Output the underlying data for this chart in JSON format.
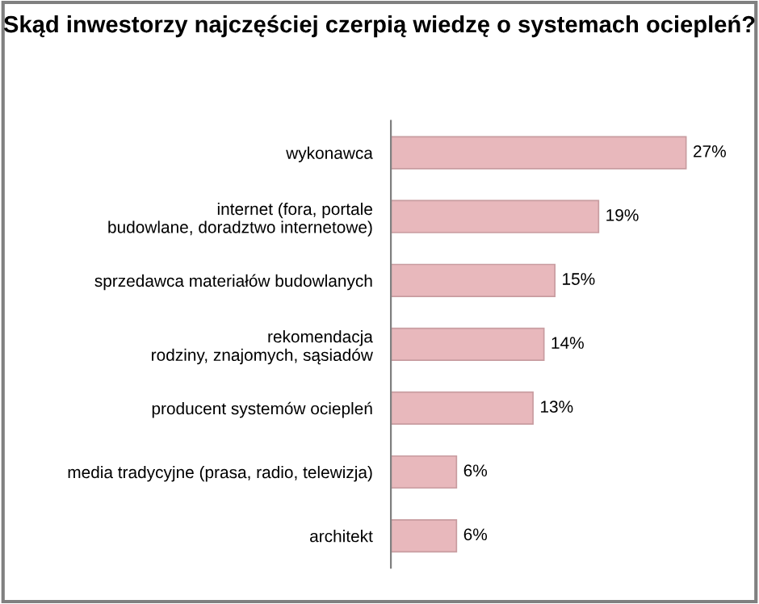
{
  "chart_data": {
    "type": "bar",
    "orientation": "horizontal",
    "title": "Skąd inwestorzy najczęściej czerpią wiedzę o systemach ociepleń?",
    "categories": [
      "wykonawca",
      "internet (fora, portale\nbudowlane, doradztwo internetowe)",
      "sprzedawca materiałów budowlanych",
      "rekomendacja\nrodziny, znajomych, sąsiadów",
      "producent systemów ociepleń",
      "media tradycyjne (prasa, radio, telewizja)",
      "architekt"
    ],
    "values": [
      27,
      19,
      15,
      14,
      13,
      6,
      6
    ],
    "value_labels": [
      "27%",
      "19%",
      "15%",
      "14%",
      "13%",
      "6%",
      "6%"
    ],
    "color": "#e8b8bc",
    "grid": false,
    "legend": false
  }
}
